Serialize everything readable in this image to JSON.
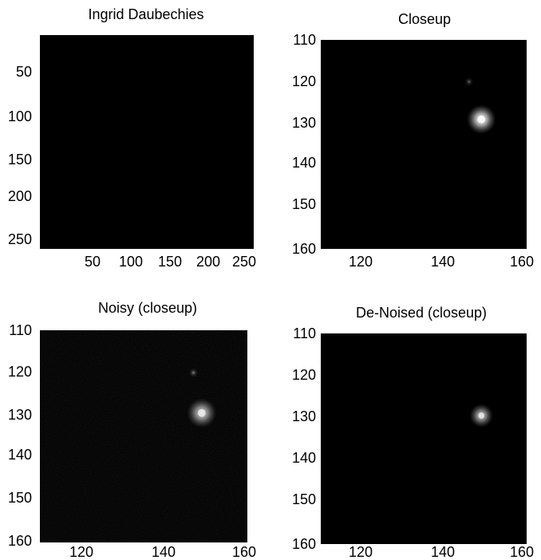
{
  "figure": {
    "panels": [
      {
        "title": "Ingrid Daubechies",
        "frame_color": "#000000",
        "x_ticks": [
          "50",
          "100",
          "150",
          "200",
          "250"
        ],
        "y_ticks": [
          "50",
          "100",
          "150",
          "200",
          "250"
        ]
      },
      {
        "title": "Closeup",
        "frame_color": "#000000",
        "x_ticks": [
          "120",
          "140",
          "160"
        ],
        "y_ticks": [
          "110",
          "120",
          "130",
          "140",
          "150",
          "160"
        ]
      },
      {
        "title": "Noisy (closeup)",
        "frame_color": "#000000",
        "x_ticks": [
          "120",
          "140",
          "160"
        ],
        "y_ticks": [
          "110",
          "120",
          "130",
          "140",
          "150",
          "160"
        ]
      },
      {
        "title": "De-Noised (closeup)",
        "frame_color": "#000000",
        "x_ticks": [
          "120",
          "140",
          "160"
        ],
        "y_ticks": [
          "110",
          "120",
          "130",
          "140",
          "150",
          "160"
        ]
      }
    ]
  },
  "chart_data": [
    {
      "type": "heatmap",
      "title": "Ingrid Daubechies",
      "xlabel": "",
      "ylabel": "",
      "xlim": [
        1,
        256
      ],
      "ylim": [
        1,
        256
      ],
      "y_reversed": true,
      "x_ticks": [
        50,
        100,
        150,
        200,
        250
      ],
      "y_ticks": [
        50,
        100,
        150,
        200,
        250
      ],
      "grid": false,
      "colormap": "gray",
      "bright_spots": []
    },
    {
      "type": "heatmap",
      "title": "Closeup",
      "xlabel": "",
      "ylabel": "",
      "xlim": [
        110,
        160
      ],
      "ylim": [
        110,
        160
      ],
      "y_reversed": true,
      "x_ticks": [
        120,
        140,
        160
      ],
      "y_ticks": [
        110,
        120,
        130,
        140,
        150,
        160
      ],
      "grid": false,
      "colormap": "gray",
      "bright_spots": [
        {
          "x": 149,
          "y": 129,
          "intensity": 1.0,
          "spread": 1.6
        },
        {
          "x": 146,
          "y": 120,
          "intensity": 0.2,
          "spread": 0.5
        }
      ]
    },
    {
      "type": "heatmap",
      "title": "Noisy (closeup)",
      "xlabel": "",
      "ylabel": "",
      "xlim": [
        110,
        160
      ],
      "ylim": [
        110,
        160
      ],
      "y_reversed": true,
      "x_ticks": [
        120,
        140,
        160
      ],
      "y_ticks": [
        110,
        120,
        130,
        140,
        150,
        160
      ],
      "grid": false,
      "colormap": "gray",
      "bright_spots": [
        {
          "x": 149,
          "y": 129.5,
          "intensity": 0.8,
          "spread": 1.6
        },
        {
          "x": 147,
          "y": 120,
          "intensity": 0.25,
          "spread": 0.5
        }
      ]
    },
    {
      "type": "heatmap",
      "title": "De-Noised (closeup)",
      "xlabel": "",
      "ylabel": "",
      "xlim": [
        110,
        160
      ],
      "ylim": [
        110,
        160
      ],
      "y_reversed": true,
      "x_ticks": [
        120,
        140,
        160
      ],
      "y_ticks": [
        110,
        120,
        130,
        140,
        150,
        160
      ],
      "grid": false,
      "colormap": "gray",
      "bright_spots": [
        {
          "x": 149,
          "y": 129.5,
          "intensity": 0.75,
          "spread": 1.3
        }
      ]
    }
  ]
}
